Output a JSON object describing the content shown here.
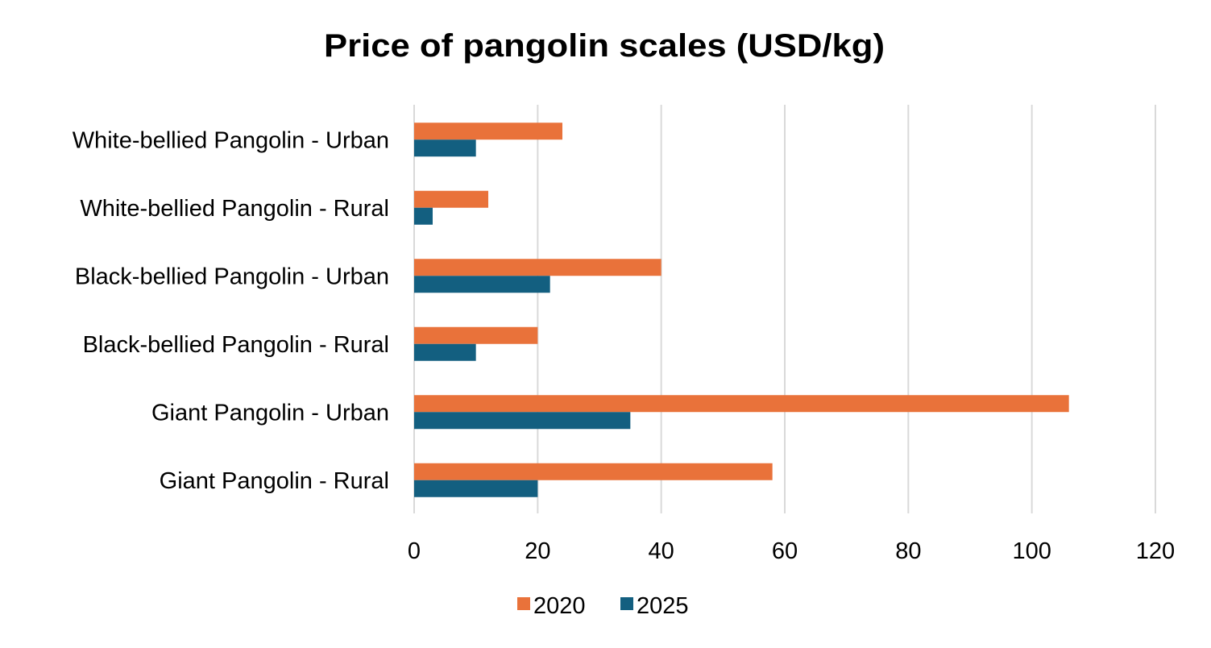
{
  "chart_data": {
    "type": "bar",
    "orientation": "horizontal",
    "title": "Price of pangolin scales (USD/kg)",
    "xlabel": "",
    "ylabel": "",
    "categories": [
      "White-bellied Pangolin - Urban",
      "White-bellied Pangolin - Rural",
      "Black-bellied Pangolin - Urban",
      "Black-bellied Pangolin - Rural",
      "Giant Pangolin - Urban",
      "Giant Pangolin - Rural"
    ],
    "series": [
      {
        "name": "2020",
        "color": "#E9723A",
        "values": [
          24,
          12,
          40,
          20,
          106,
          58
        ]
      },
      {
        "name": "2025",
        "color": "#135F80",
        "values": [
          10,
          3,
          22,
          10,
          35,
          20
        ]
      }
    ],
    "xlim": [
      0,
      120
    ],
    "xticks": [
      0,
      20,
      40,
      60,
      80,
      100,
      120
    ],
    "grid": true,
    "legend_position": "bottom"
  }
}
